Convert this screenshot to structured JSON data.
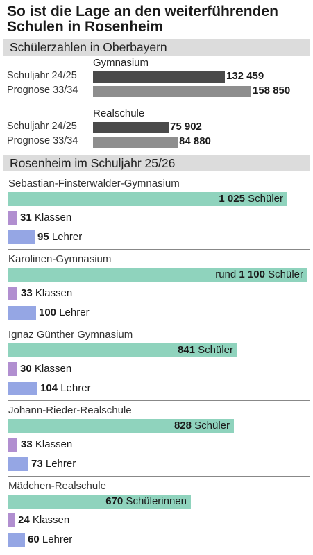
{
  "title_lines": [
    "So ist die Lage an den weiterführenden",
    "Schulen in Rosenheim"
  ],
  "section1_title": "Schülerzahlen in Oberbayern",
  "section2_title": "Rosenheim im Schuljahr 25/26",
  "colors": {
    "dark_bar": "#4a4a4a",
    "grey_bar": "#8e8e8e",
    "students": "#8fd3bd",
    "classes": "#b18fd0",
    "teachers": "#95a6e4"
  },
  "chart_data": [
    {
      "type": "bar",
      "title": "Schülerzahlen in Oberbayern",
      "groups": [
        {
          "name": "Gymnasium",
          "rows": [
            {
              "label": "Schuljahr 24/25",
              "value": 132459,
              "display": "132 459"
            },
            {
              "label": "Prognose 33/34",
              "value": 158850,
              "display": "158 850"
            }
          ]
        },
        {
          "name": "Realschule",
          "rows": [
            {
              "label": "Schuljahr 24/25",
              "value": 75902,
              "display": "75 902"
            },
            {
              "label": "Prognose 33/34",
              "value": 84880,
              "display": "84 880"
            }
          ]
        }
      ]
    },
    {
      "type": "bar",
      "title": "Rosenheim im Schuljahr 25/26",
      "schools": [
        {
          "name": "Sebastian-Finsterwalder-Gymnasium",
          "students": {
            "value": 1025,
            "prefix": "",
            "num": "1 025",
            "unit": " Schüler"
          },
          "classes": {
            "value": 31,
            "num": "31",
            "unit": " Klassen"
          },
          "teachers": {
            "value": 95,
            "num": "95",
            "unit": " Lehrer"
          }
        },
        {
          "name": "Karolinen-Gymnasium",
          "students": {
            "value": 1100,
            "prefix": "rund ",
            "num": "1 100",
            "unit": " Schüler"
          },
          "classes": {
            "value": 33,
            "num": "33",
            "unit": " Klassen"
          },
          "teachers": {
            "value": 100,
            "num": "100",
            "unit": " Lehrer"
          }
        },
        {
          "name": "Ignaz Günther Gymnasium",
          "students": {
            "value": 841,
            "prefix": "",
            "num": "841",
            "unit": " Schüler"
          },
          "classes": {
            "value": 30,
            "num": "30",
            "unit": " Klassen"
          },
          "teachers": {
            "value": 104,
            "num": "104",
            "unit": " Lehrer"
          }
        },
        {
          "name": "Johann-Rieder-Realschule",
          "students": {
            "value": 828,
            "prefix": "",
            "num": "828",
            "unit": " Schüler"
          },
          "classes": {
            "value": 33,
            "num": "33",
            "unit": " Klassen"
          },
          "teachers": {
            "value": 73,
            "num": "73",
            "unit": " Lehrer"
          }
        },
        {
          "name": "Mädchen-Realschule",
          "students": {
            "value": 670,
            "prefix": "",
            "num": "670",
            "unit": " Schülerinnen"
          },
          "classes": {
            "value": 24,
            "num": "24",
            "unit": " Klassen"
          },
          "teachers": {
            "value": 60,
            "num": "60",
            "unit": " Lehrer"
          }
        }
      ]
    }
  ]
}
